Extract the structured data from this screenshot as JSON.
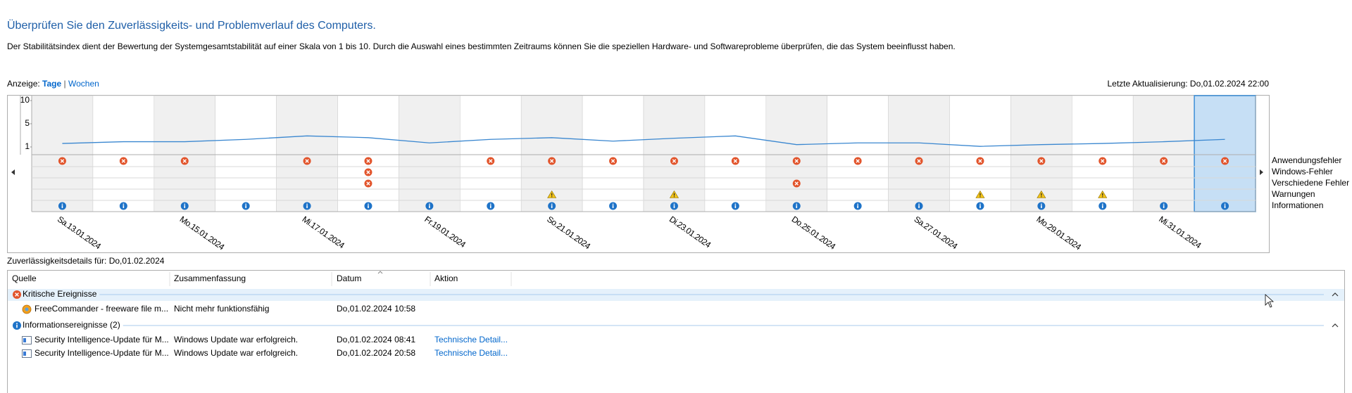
{
  "header": {
    "title": "Überprüfen Sie den Zuverlässigkeits- und Problemverlauf des Computers.",
    "description": "Der Stabilitätsindex dient der Bewertung der Systemgesamtstabilität auf einer Skala von 1 bis 10. Durch die Auswahl eines bestimmten Zeitraums können Sie die speziellen Hardware- und Softwareprobleme überprüfen, die das System beeinflusst haben."
  },
  "view": {
    "label": "Anzeige:",
    "options": [
      "Tage",
      "Wochen"
    ],
    "separator": "|",
    "selected": 0
  },
  "last_update": "Letzte Aktualisierung: Do,01.02.2024 22:00",
  "chart_data": {
    "type": "reliability",
    "ylim": [
      1,
      10
    ],
    "yticks": [
      10,
      5,
      1
    ],
    "dates": [
      "Sa.13.01.2024",
      null,
      "Mo.15.01.2024",
      null,
      "Mi.17.01.2024",
      null,
      "Fr.19.01.2024",
      null,
      "So.21.01.2024",
      null,
      "Di.23.01.2024",
      null,
      "Do.25.01.2024",
      null,
      "Sa.27.01.2024",
      null,
      "Mo.29.01.2024",
      null,
      "Mi.31.01.2024",
      null
    ],
    "stability": [
      1.6,
      1.9,
      1.9,
      2.3,
      2.9,
      2.6,
      1.7,
      2.3,
      2.6,
      2.0,
      2.5,
      2.9,
      1.4,
      1.7,
      1.7,
      1.1,
      1.4,
      1.6,
      1.9,
      2.3
    ],
    "color": "#3a87d0",
    "selected_day": 19,
    "rows": [
      {
        "name": "Anwendungsfehler",
        "icon": "error",
        "days": [
          0,
          1,
          2,
          4,
          5,
          7,
          8,
          9,
          10,
          11,
          12,
          13,
          14,
          15,
          16,
          17,
          18,
          19
        ]
      },
      {
        "name": "Windows-Fehler",
        "icon": "error",
        "days": [
          5
        ]
      },
      {
        "name": "Verschiedene Fehler",
        "icon": "error",
        "days": [
          5,
          12
        ]
      },
      {
        "name": "Warnungen",
        "icon": "warning",
        "days": [
          8,
          10,
          15,
          16,
          17
        ]
      },
      {
        "name": "Informationen",
        "icon": "info",
        "days": [
          0,
          1,
          2,
          3,
          4,
          5,
          6,
          7,
          8,
          9,
          10,
          11,
          12,
          13,
          14,
          15,
          16,
          17,
          18,
          19
        ]
      }
    ]
  },
  "details": {
    "title": "Zuverlässigkeitsdetails für: Do,01.02.2024",
    "columns": [
      "Quelle",
      "Zusammenfassung",
      "Datum",
      "Aktion"
    ],
    "groups": [
      {
        "name": "Kritische Ereignisse",
        "icon": "error",
        "rows": [
          {
            "source": "FreeCommander - freeware file m...",
            "summary": "Nicht mehr funktionsfähig",
            "date": "Do,01.02.2024 10:58"
          }
        ]
      },
      {
        "name": "Informationsereignisse (2)",
        "icon": "info",
        "rows": [
          {
            "source": "Security Intelligence-Update für M...",
            "summary": "Windows Update war erfolgreich.",
            "date": "Do,01.02.2024 08:41",
            "action": "Technische Detail..."
          },
          {
            "source": "Security Intelligence-Update für M...",
            "summary": "Windows Update war erfolgreich.",
            "date": "Do,01.02.2024 20:58",
            "action": "Technische Detail..."
          }
        ]
      }
    ]
  }
}
